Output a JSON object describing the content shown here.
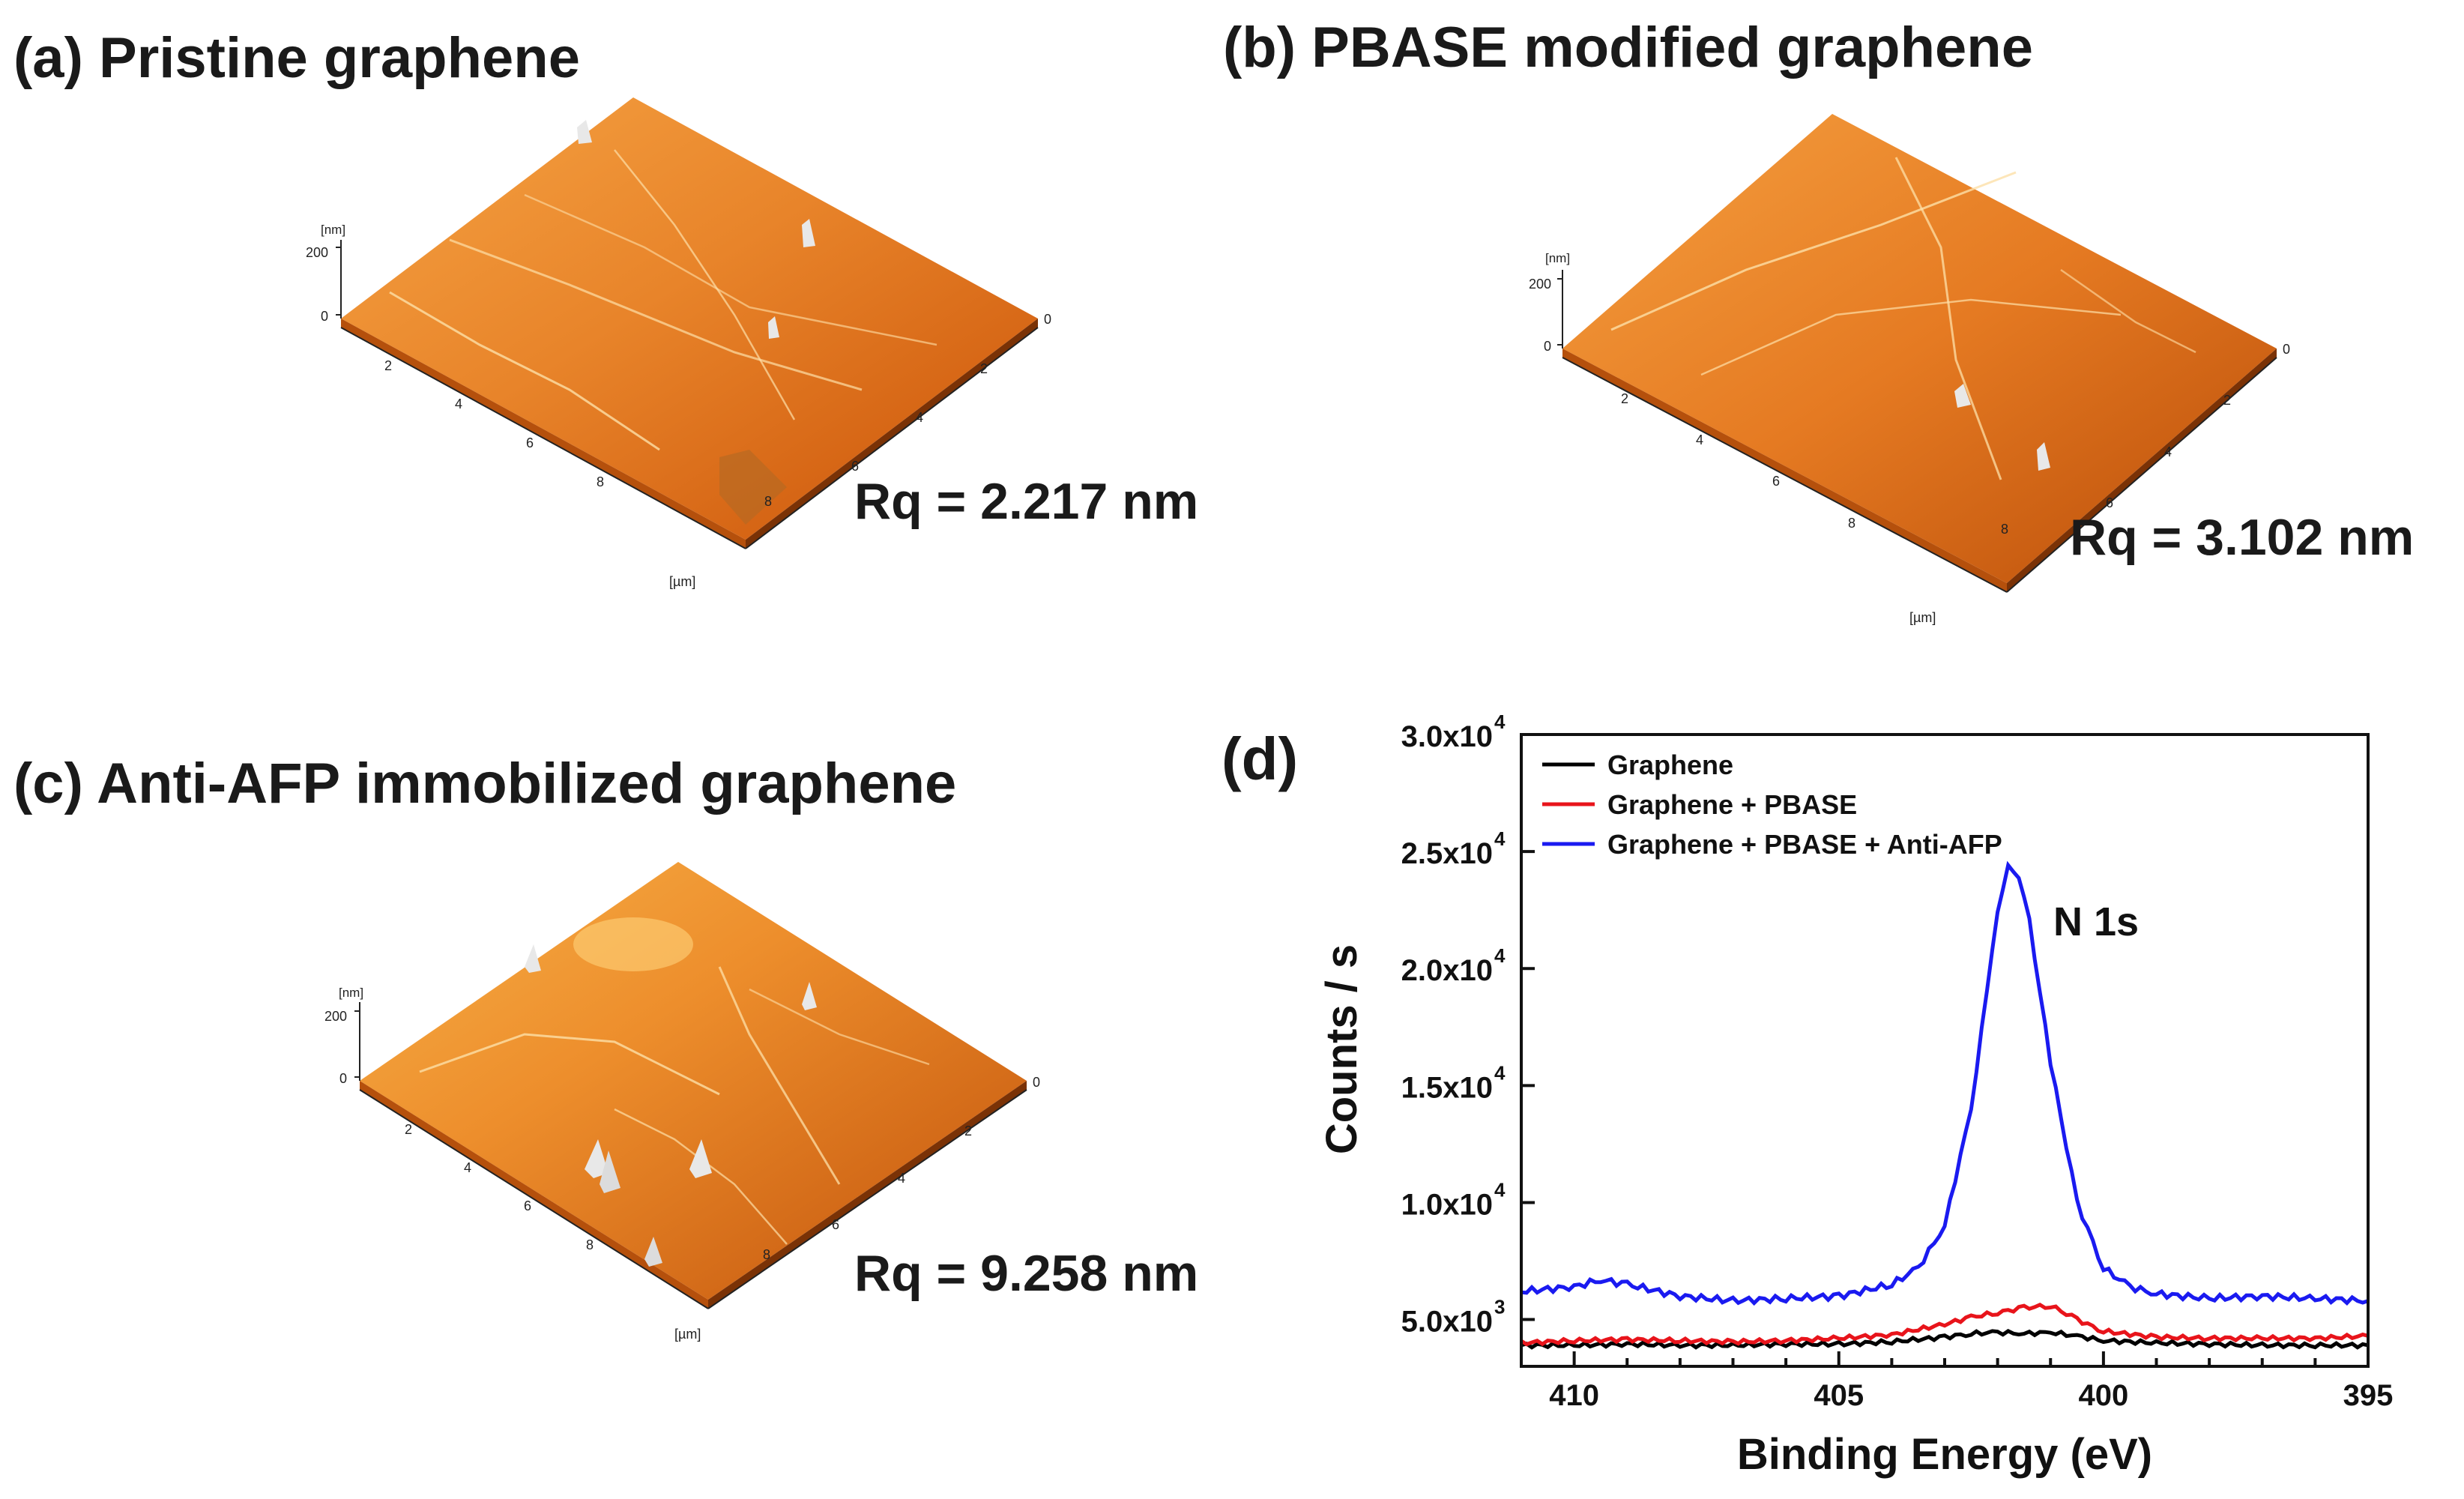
{
  "panels": [
    {
      "id": "a",
      "title": "(a)  Pristine graphene",
      "rq": "Rq = 2.217 nm",
      "z_unit": "[nm]",
      "z_ticks": [
        "200",
        "0"
      ],
      "xy_unit": "[µm]",
      "left_ticks": [
        "2",
        "4",
        "6",
        "8"
      ],
      "right_ticks": [
        "0",
        "2",
        "4",
        "6",
        "8"
      ]
    },
    {
      "id": "b",
      "title": "(b) PBASE modified graphene",
      "rq": "Rq = 3.102 nm",
      "z_unit": "[nm]",
      "z_ticks": [
        "200",
        "0"
      ],
      "xy_unit": "[µm]",
      "left_ticks": [
        "2",
        "4",
        "6",
        "8"
      ],
      "right_ticks": [
        "0",
        "2",
        "4",
        "6",
        "8"
      ]
    },
    {
      "id": "c",
      "title": "(c) Anti-AFP immobilized graphene",
      "rq": "Rq = 9.258 nm",
      "z_unit": "[nm]",
      "z_ticks": [
        "200",
        "0"
      ],
      "xy_unit": "[µm]",
      "left_ticks": [
        "2",
        "4",
        "6",
        "8"
      ],
      "right_ticks": [
        "0",
        "2",
        "4",
        "6",
        "8"
      ]
    }
  ],
  "xps": {
    "label": "(d)",
    "annotation": "N 1s",
    "colors": {
      "Graphene": "#000000",
      "Graphene + PBASE": "#e8141b",
      "Graphene + PBASE + Anti-AFP": "#1a1af0"
    }
  },
  "chart_data": {
    "type": "line",
    "xlabel": "Binding Energy (eV)",
    "ylabel": "Counts / s",
    "xlim": [
      411,
      395
    ],
    "ylim": [
      3000,
      30000
    ],
    "x_ticks": [
      "410",
      "405",
      "400",
      "395"
    ],
    "y_ticks": [
      {
        "base": "5.0x10",
        "exp": "3",
        "value": 5000
      },
      {
        "base": "1.0x10",
        "exp": "4",
        "value": 10000
      },
      {
        "base": "1.5x10",
        "exp": "4",
        "value": 15000
      },
      {
        "base": "2.0x10",
        "exp": "4",
        "value": 20000
      },
      {
        "base": "2.5x10",
        "exp": "4",
        "value": 25000
      },
      {
        "base": "3.0x10",
        "exp": "4",
        "value": 30000
      }
    ],
    "legend_position": "top-left",
    "series": [
      {
        "name": "Graphene",
        "x": [
          411,
          410,
          409,
          408,
          407,
          406,
          405,
          404,
          403,
          402.5,
          402,
          401.5,
          401,
          400.5,
          400,
          399,
          398,
          397,
          396,
          395
        ],
        "y": [
          3900,
          3900,
          3950,
          3900,
          3900,
          3950,
          3950,
          4050,
          4250,
          4400,
          4450,
          4400,
          4450,
          4300,
          4100,
          4000,
          3950,
          3900,
          3900,
          3900
        ]
      },
      {
        "name": "Graphene + PBASE",
        "x": [
          411,
          410,
          409,
          408,
          407,
          406,
          405,
          404,
          403,
          402.5,
          402,
          401.5,
          401,
          400.5,
          400,
          399,
          398,
          397,
          396,
          395
        ],
        "y": [
          4000,
          4100,
          4150,
          4100,
          4050,
          4100,
          4200,
          4350,
          4800,
          5100,
          5300,
          5500,
          5600,
          5000,
          4500,
          4250,
          4200,
          4200,
          4200,
          4300
        ]
      },
      {
        "name": "Graphene + PBASE + Anti-AFP",
        "x": [
          411,
          410,
          409.5,
          409,
          408,
          407,
          406,
          405,
          404,
          403.5,
          403,
          402.5,
          402.2,
          402,
          401.8,
          401.6,
          401.4,
          401,
          400.5,
          400,
          399.5,
          399,
          398,
          397,
          396,
          395
        ],
        "y": [
          6200,
          6400,
          6700,
          6500,
          6000,
          5800,
          5900,
          6000,
          6500,
          7200,
          9000,
          14000,
          19000,
          22500,
          24300,
          24000,
          22000,
          16000,
          10000,
          7200,
          6400,
          6100,
          5900,
          6000,
          5900,
          5800
        ]
      }
    ]
  }
}
